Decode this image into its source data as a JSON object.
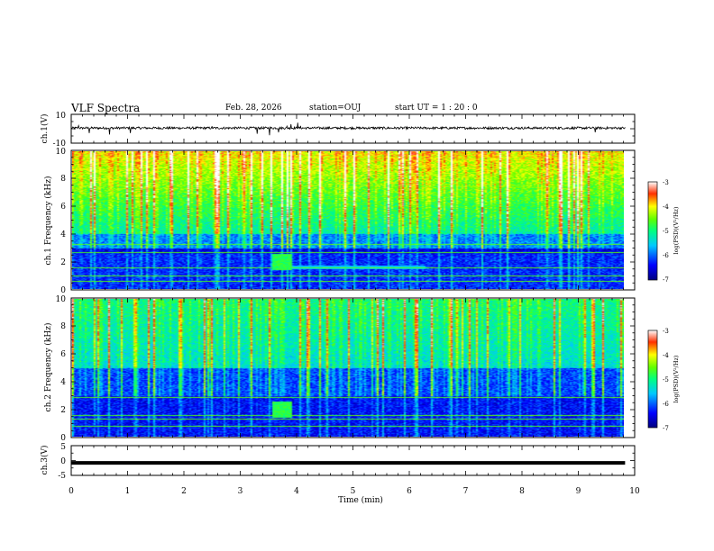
{
  "header": {
    "title": "VLF Spectra",
    "date": "Feb. 28, 2026",
    "station": "station=OUJ",
    "start_ut": "start UT =  1 : 20 : 0"
  },
  "chart_data": [
    {
      "type": "line",
      "panel": "ch1-waveform",
      "ylabel": "ch.1(V)",
      "ylim": [
        -10,
        10
      ],
      "ytick_labels": [
        "10",
        "-10"
      ],
      "xlim": [
        0,
        10
      ],
      "data_end_min": 9.83,
      "baseline": 0.5,
      "spikes": [
        {
          "t": 0.13,
          "v": 2.2
        },
        {
          "t": 0.32,
          "v": -3.0
        },
        {
          "t": 0.68,
          "v": -4.0
        },
        {
          "t": 1.05,
          "v": -3.0
        },
        {
          "t": 2.5,
          "v": 1.5
        },
        {
          "t": 3.3,
          "v": -3.5
        },
        {
          "t": 3.52,
          "v": -4.5
        },
        {
          "t": 3.68,
          "v": -2.5
        },
        {
          "t": 3.83,
          "v": 1.8
        },
        {
          "t": 3.9,
          "v": 3.2
        },
        {
          "t": 4.02,
          "v": 4.2
        },
        {
          "t": 4.07,
          "v": 2.0
        },
        {
          "t": 9.3,
          "v": -2.5
        }
      ]
    },
    {
      "type": "heatmap",
      "panel": "ch1-spectrogram",
      "ylabel": "ch.1 Frequency (kHz)",
      "ylim": [
        0,
        10
      ],
      "ytick_labels": [
        "0",
        "2",
        "4",
        "6",
        "8",
        "10"
      ],
      "xlim": [
        0,
        10
      ],
      "colorbar": {
        "label": "log(PSD)(V²/Hz)",
        "range": [
          -7,
          -3
        ],
        "tick_labels": [
          "-3",
          "-4",
          "-5",
          "-6",
          "-7"
        ]
      },
      "feature_freqs_khz": [
        0.6,
        1.0,
        1.6,
        2.7,
        3.3
      ],
      "event_time_min": 3.8
    },
    {
      "type": "heatmap",
      "panel": "ch2-spectrogram",
      "ylabel": "ch.2 Frequency (kHz)",
      "ylim": [
        0,
        10
      ],
      "ytick_labels": [
        "0",
        "2",
        "4",
        "6",
        "8",
        "10"
      ],
      "xlim": [
        0,
        10
      ],
      "colorbar": {
        "label": "log(PSD)(V²/Hz)",
        "range": [
          -7,
          -3
        ],
        "tick_labels": [
          "-3",
          "-4",
          "-5",
          "-6",
          "-7"
        ]
      },
      "feature_freqs_khz": [
        0.8,
        1.3,
        1.6,
        2.9
      ],
      "event_time_min": 3.8
    },
    {
      "type": "line",
      "panel": "ch3-waveform",
      "ylabel": "ch.3(V)",
      "ylim": [
        -5,
        5
      ],
      "ytick_labels": [
        "5",
        "0",
        "-5"
      ],
      "xlim": [
        0,
        10
      ],
      "data_end_min": 9.83,
      "baseline": -0.8
    }
  ],
  "x_axis": {
    "label": "Time (min)",
    "tick_labels": [
      "0",
      "1",
      "2",
      "3",
      "4",
      "5",
      "6",
      "7",
      "8",
      "9",
      "10"
    ]
  }
}
